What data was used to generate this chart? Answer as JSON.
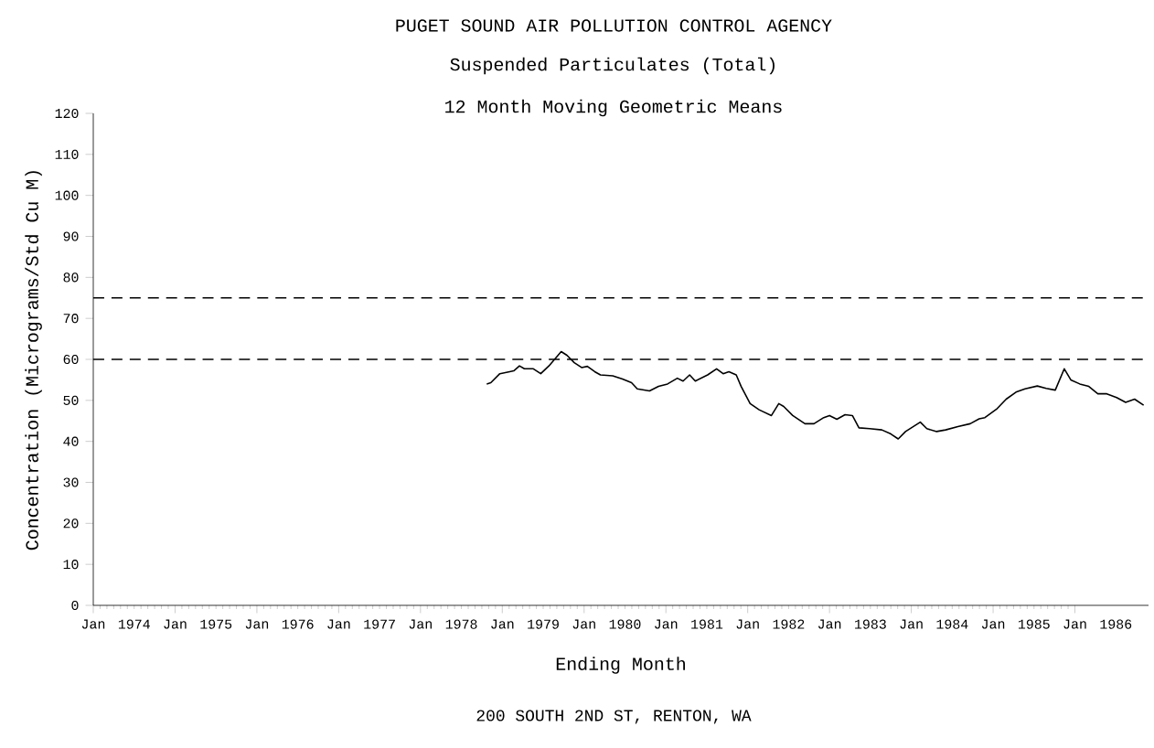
{
  "chart_data": {
    "type": "line",
    "title": "PUGET SOUND AIR POLLUTION CONTROL AGENCY",
    "subtitle": "Suspended Particulates (Total)",
    "annotations": [
      "12 Month Moving Geometric Means",
      "200 SOUTH 2ND ST, RENTON, WA"
    ],
    "xlabel": "Ending Month",
    "ylabel": "Concentration (Micrograms/Std Cu M)",
    "xlim": [
      1974,
      1986.9
    ],
    "ylim": [
      0,
      120
    ],
    "yticks": [
      0,
      10,
      20,
      30,
      40,
      50,
      60,
      70,
      80,
      90,
      100,
      110,
      120
    ],
    "xticks": [
      {
        "value": 1974,
        "label": "Jan"
      },
      {
        "value": 1974.5,
        "label": "1974"
      },
      {
        "value": 1975,
        "label": "Jan"
      },
      {
        "value": 1975.5,
        "label": "1975"
      },
      {
        "value": 1976,
        "label": "Jan"
      },
      {
        "value": 1976.5,
        "label": "1976"
      },
      {
        "value": 1977,
        "label": "Jan"
      },
      {
        "value": 1977.5,
        "label": "1977"
      },
      {
        "value": 1978,
        "label": "Jan"
      },
      {
        "value": 1978.5,
        "label": "1978"
      },
      {
        "value": 1979,
        "label": "Jan"
      },
      {
        "value": 1979.5,
        "label": "1979"
      },
      {
        "value": 1980,
        "label": "Jan"
      },
      {
        "value": 1980.5,
        "label": "1980"
      },
      {
        "value": 1981,
        "label": "Jan"
      },
      {
        "value": 1981.5,
        "label": "1981"
      },
      {
        "value": 1982,
        "label": "Jan"
      },
      {
        "value": 1982.5,
        "label": "1982"
      },
      {
        "value": 1983,
        "label": "Jan"
      },
      {
        "value": 1983.5,
        "label": "1983"
      },
      {
        "value": 1984,
        "label": "Jan"
      },
      {
        "value": 1984.5,
        "label": "1984"
      },
      {
        "value": 1985,
        "label": "Jan"
      },
      {
        "value": 1985.5,
        "label": "1985"
      },
      {
        "value": 1986,
        "label": "Jan"
      },
      {
        "value": 1986.5,
        "label": "1986"
      }
    ],
    "ref_lines": [
      {
        "axis": "y",
        "value": 75,
        "color": "#000000",
        "line_style": "dashed"
      },
      {
        "axis": "y",
        "value": 60,
        "color": "#000000",
        "line_style": "dashed"
      }
    ],
    "marker": "none",
    "line_style": "solid",
    "x": [
      1978.81,
      1978.86,
      1978.97,
      1979.09,
      1979.14,
      1979.21,
      1979.27,
      1979.38,
      1979.47,
      1979.57,
      1979.72,
      1979.79,
      1979.88,
      1979.97,
      1980.04,
      1980.13,
      1980.2,
      1980.35,
      1980.47,
      1980.58,
      1980.65,
      1980.8,
      1980.91,
      1981.02,
      1981.14,
      1981.21,
      1981.29,
      1981.36,
      1981.51,
      1981.62,
      1981.7,
      1981.77,
      1981.86,
      1981.92,
      1982.03,
      1982.14,
      1982.29,
      1982.38,
      1982.44,
      1982.55,
      1982.7,
      1982.81,
      1982.93,
      1983.0,
      1983.09,
      1983.19,
      1983.28,
      1983.36,
      1983.49,
      1983.64,
      1983.75,
      1983.84,
      1983.93,
      1984.11,
      1984.19,
      1984.31,
      1984.42,
      1984.57,
      1984.72,
      1984.83,
      1984.9,
      1985.05,
      1985.16,
      1985.28,
      1985.39,
      1985.54,
      1985.65,
      1985.76,
      1985.87,
      1985.95,
      1986.06,
      1986.17,
      1986.28,
      1986.39,
      1986.51,
      1986.62,
      1986.73,
      1986.84
    ],
    "series": [
      {
        "color": "#000000",
        "values": [
          54.0,
          54.3,
          56.5,
          57.0,
          57.2,
          58.4,
          57.7,
          57.7,
          56.5,
          58.4,
          61.9,
          61.0,
          59.2,
          58.0,
          58.3,
          57.0,
          56.2,
          56.0,
          55.2,
          54.3,
          52.8,
          52.3,
          53.4,
          54.0,
          55.4,
          54.7,
          56.2,
          54.7,
          56.2,
          57.7,
          56.5,
          57.0,
          56.2,
          53.4,
          49.2,
          47.7,
          46.3,
          49.2,
          48.5,
          46.3,
          44.3,
          44.3,
          45.8,
          46.3,
          45.4,
          46.5,
          46.3,
          43.3,
          43.1,
          42.8,
          41.8,
          40.6,
          42.4,
          44.7,
          43.1,
          42.4,
          42.8,
          43.6,
          44.3,
          45.5,
          45.8,
          48.0,
          50.3,
          52.0,
          52.8,
          53.5,
          52.9,
          52.5,
          57.7,
          55.0,
          54.0,
          53.4,
          51.6,
          51.6,
          50.7,
          49.5,
          50.3,
          48.8
        ]
      }
    ]
  }
}
